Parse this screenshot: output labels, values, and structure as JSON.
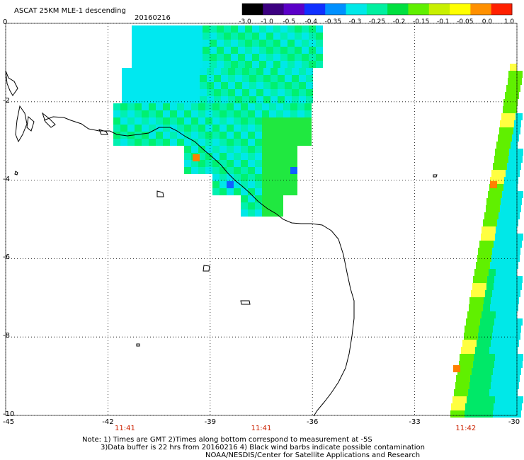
{
  "header": {
    "product": "ASCAT 25KM MLE-1 descending",
    "date": "20160216"
  },
  "colorbar": {
    "labels": [
      "-3.0",
      "-1.0",
      "-0.5",
      "-0.4",
      "-0.35",
      "-0.3",
      "-0.25",
      "-0.2",
      "-0.15",
      "-0.1",
      "-0.05",
      "0.0",
      "1.0"
    ],
    "colors": [
      "#000000",
      "#3b0080",
      "#5a00c8",
      "#1030ff",
      "#0090ff",
      "#00e8e8",
      "#00f0a0",
      "#00e040",
      "#60f000",
      "#c8f000",
      "#ffff00",
      "#ff9000",
      "#ff2000"
    ]
  },
  "map": {
    "x_axis": {
      "ticks": [
        "-45",
        "-42",
        "-39",
        "-36",
        "-33",
        "-30"
      ],
      "range": [
        -45,
        -30
      ]
    },
    "y_axis": {
      "ticks": [
        "0",
        "-2",
        "-4",
        "-6",
        "-8",
        "-10"
      ],
      "range": [
        -10,
        0
      ]
    },
    "time_labels": [
      {
        "text": "11:41",
        "lon": -41.5
      },
      {
        "text": "11:41",
        "lon": -37.5
      },
      {
        "text": "11:42",
        "lon": -31.5
      }
    ],
    "grid": true
  },
  "notes": {
    "line1": "Note: 1) Times are GMT 2)Times along bottom correspond to measurement at -5S",
    "line2": "3)Data buffer is 22 hrs from 20160216 4) Black wind barbs indicate possible contamination",
    "line3": "NOAA/NESDIS/Center for Satellite Applications and Research"
  }
}
